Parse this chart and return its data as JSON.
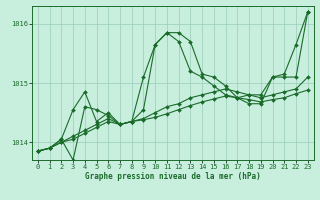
{
  "title": "Graphe pression niveau de la mer (hPa)",
  "background_color": "#c8eede",
  "plot_bg_color": "#c8eede",
  "grid_color": "#99ccbb",
  "line_color": "#1a6b2a",
  "xlim": [
    -0.5,
    23.5
  ],
  "ylim": [
    1013.7,
    1016.3
  ],
  "yticks": [
    1014,
    1015,
    1016
  ],
  "xticks": [
    0,
    1,
    2,
    3,
    4,
    5,
    6,
    7,
    8,
    9,
    10,
    11,
    12,
    13,
    14,
    15,
    16,
    17,
    18,
    19,
    20,
    21,
    22,
    23
  ],
  "series": [
    {
      "x": [
        0,
        1,
        2,
        3,
        4,
        5,
        6,
        7,
        8,
        9,
        10,
        11,
        12,
        13,
        14,
        15,
        16,
        17,
        18,
        19,
        20,
        21,
        22,
        23
      ],
      "y": [
        1013.85,
        1013.9,
        1014.05,
        1014.55,
        1014.85,
        1014.35,
        1014.5,
        1014.3,
        1014.35,
        1015.1,
        1015.65,
        1015.85,
        1015.85,
        1015.7,
        1015.15,
        1015.1,
        1014.95,
        1014.75,
        1014.8,
        1014.8,
        1015.1,
        1015.15,
        1015.65,
        1016.2
      ]
    },
    {
      "x": [
        0,
        1,
        2,
        3,
        4,
        5,
        6,
        7,
        8,
        9,
        10,
        11,
        12,
        13,
        14,
        15,
        16,
        17,
        18,
        19,
        20,
        21,
        22,
        23
      ],
      "y": [
        1013.85,
        1013.9,
        1014.05,
        1013.7,
        1014.6,
        1014.55,
        1014.45,
        1014.3,
        1014.35,
        1014.55,
        1015.65,
        1015.85,
        1015.7,
        1015.2,
        1015.1,
        1014.95,
        1014.8,
        1014.75,
        1014.65,
        1014.65,
        1015.1,
        1015.1,
        1015.1,
        1016.2
      ]
    },
    {
      "x": [
        0,
        1,
        2,
        3,
        4,
        5,
        6,
        7,
        8,
        9,
        10,
        11,
        12,
        13,
        14,
        15,
        16,
        17,
        18,
        19,
        20,
        21,
        22,
        23
      ],
      "y": [
        1013.85,
        1013.9,
        1014.0,
        1014.1,
        1014.2,
        1014.3,
        1014.4,
        1014.3,
        1014.35,
        1014.4,
        1014.5,
        1014.6,
        1014.65,
        1014.75,
        1014.8,
        1014.85,
        1014.9,
        1014.85,
        1014.8,
        1014.75,
        1014.8,
        1014.85,
        1014.9,
        1015.1
      ]
    },
    {
      "x": [
        0,
        1,
        2,
        3,
        4,
        5,
        6,
        7,
        8,
        9,
        10,
        11,
        12,
        13,
        14,
        15,
        16,
        17,
        18,
        19,
        20,
        21,
        22,
        23
      ],
      "y": [
        1013.85,
        1013.9,
        1014.0,
        1014.05,
        1014.15,
        1014.25,
        1014.35,
        1014.3,
        1014.35,
        1014.38,
        1014.42,
        1014.48,
        1014.55,
        1014.62,
        1014.68,
        1014.73,
        1014.78,
        1014.75,
        1014.72,
        1014.68,
        1014.72,
        1014.75,
        1014.82,
        1014.88
      ]
    }
  ]
}
